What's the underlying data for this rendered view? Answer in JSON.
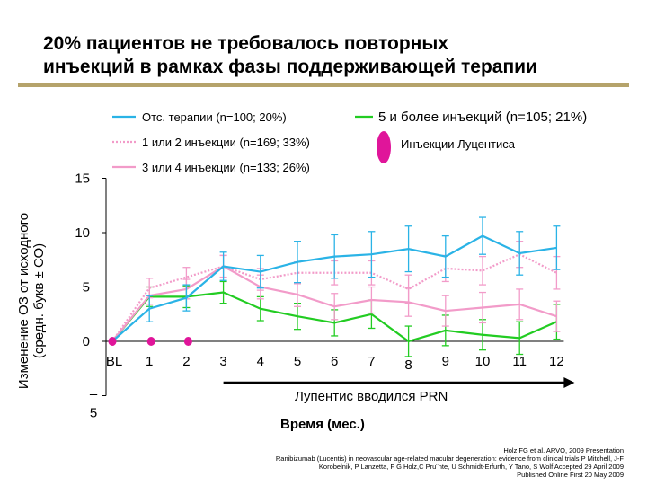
{
  "title_lines": [
    "20% пациентов не требовалось повторных",
    "инъекций в рамках фазы поддерживающей терапии"
  ],
  "chart_data": {
    "type": "line",
    "title": "",
    "xlabel": "Время (мес.)",
    "ylabel": "Изменение ОЗ от исходного (средн. букв ± СО)",
    "categories": [
      "BL",
      "1",
      "2",
      "3",
      "4",
      "5",
      "6",
      "7",
      "8",
      "9",
      "10",
      "11",
      "12"
    ],
    "ylim": [
      -5,
      15
    ],
    "y_tick_labels": [
      "15",
      "10",
      "5",
      "0",
      "–",
      "5"
    ],
    "prn_label": "Лупентис вводился PRN",
    "series": [
      {
        "name": "Отс. терапии (n=100; 20%)",
        "color": "#2ab3e6",
        "dash": "solid",
        "values": [
          0,
          3.0,
          4.0,
          6.9,
          6.4,
          7.3,
          7.8,
          8.0,
          8.5,
          7.8,
          9.7,
          8.1,
          8.6
        ],
        "err": [
          0,
          1.2,
          1.2,
          1.3,
          1.5,
          1.9,
          2.0,
          2.1,
          2.1,
          1.9,
          1.7,
          2.0,
          2.0
        ]
      },
      {
        "name": "1 или 2 инъекции (n=169; 33%)",
        "color": "#f29bc9",
        "dash": "dotted",
        "values": [
          0,
          4.9,
          5.9,
          6.9,
          5.7,
          6.3,
          6.3,
          6.3,
          4.8,
          6.7,
          6.5,
          8.0,
          6.3
        ],
        "err": [
          0,
          0.9,
          0.9,
          1.0,
          1.0,
          1.0,
          1.1,
          1.1,
          1.3,
          1.2,
          1.3,
          1.2,
          1.5
        ]
      },
      {
        "name": "3 или 4 инъекции (n=133; 26%)",
        "color": "#f29bc9",
        "dash": "solid",
        "values": [
          0,
          4.2,
          4.8,
          6.9,
          5.0,
          4.3,
          3.2,
          3.8,
          3.6,
          2.8,
          3.1,
          3.4,
          2.3
        ],
        "err": [
          0,
          0.8,
          0.9,
          1.0,
          1.1,
          1.1,
          1.2,
          1.2,
          1.3,
          1.4,
          1.4,
          1.4,
          1.4
        ]
      },
      {
        "name": "5 и более инъекций (n=105; 21%)",
        "color": "#22cc22",
        "dash": "solid",
        "values": [
          0,
          4.1,
          4.1,
          4.5,
          3.0,
          2.3,
          1.7,
          2.5,
          0.0,
          1.0,
          0.6,
          0.3,
          1.8
        ],
        "err": [
          0,
          0.9,
          1.0,
          1.0,
          1.1,
          1.2,
          1.2,
          1.3,
          1.4,
          1.4,
          1.4,
          1.5,
          1.6
        ]
      }
    ],
    "injection_marker": {
      "label": "Инъекции Луцентиса",
      "color": "#e0159a",
      "months": [
        "BL",
        "1",
        "2"
      ]
    }
  },
  "citation_lines": [
    "Holz FG et al. ARVO, 2009 Presentation",
    "Ranibizumab (Lucentis) in neovascular age-related macular degeneration: evidence from clinical trials P Mitchell, J-F",
    "Korobelnik, P Lanzetta, F G Holz,C Pru¨nte, U Schmidt-Erfurth, Y Tano, S Wolf Accepted 29 April 2009",
    "Published Online First 20 May 2009"
  ]
}
